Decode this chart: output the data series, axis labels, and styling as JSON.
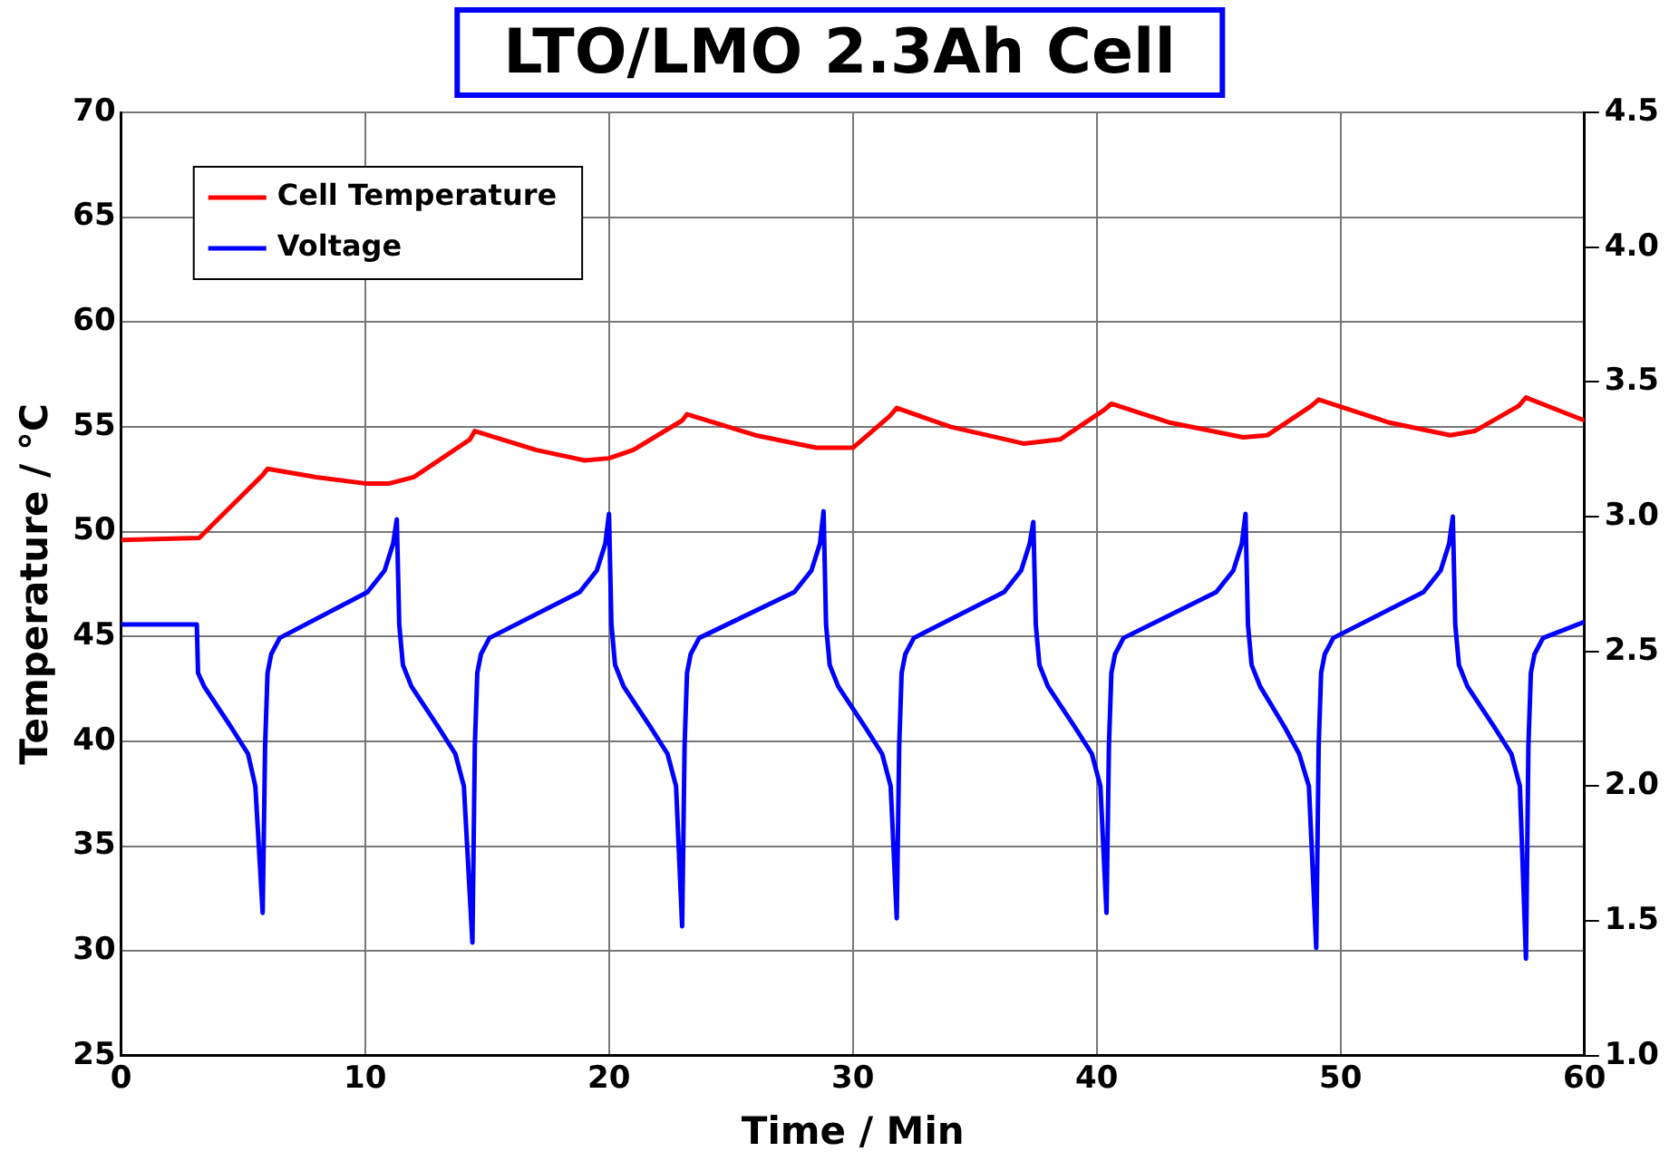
{
  "chart_data": {
    "type": "line",
    "title": "LTO/LMO 2.3Ah Cell",
    "xlabel": "Time / Min",
    "ylabel": "Temperature / °C",
    "xlim": [
      0,
      60
    ],
    "xticks": [
      0,
      10,
      20,
      30,
      40,
      50,
      60
    ],
    "ylim": [
      25,
      70
    ],
    "yticks": [
      25,
      30,
      35,
      40,
      45,
      50,
      55,
      60,
      65,
      70
    ],
    "y2lim": [
      1,
      4.5
    ],
    "y2ticks": [
      {
        "value": 1,
        "label": "1.0"
      },
      1.5,
      {
        "value": 2,
        "label": "2.0"
      },
      2.5,
      {
        "value": 3,
        "label": "3.0"
      },
      3.5,
      {
        "value": 4,
        "label": "4.0"
      },
      4.5
    ],
    "grid": true,
    "legend": "top left",
    "marker": "none",
    "line_style": "solid",
    "series": [
      {
        "name": "Cell Temperature",
        "color": "#ff0000",
        "x": [
          0,
          3.2,
          5.8,
          6.0,
          8,
          10,
          11,
          12,
          14.3,
          14.5,
          17,
          19,
          20,
          21,
          23,
          23.2,
          26,
          28.5,
          30,
          31.5,
          31.8,
          34,
          37,
          38.5,
          40.3,
          40.6,
          43,
          46,
          47,
          48.8,
          49.1,
          52,
          54.5,
          55.5,
          57.3,
          57.6,
          60
        ],
        "values": [
          49.6,
          49.7,
          52.7,
          53.0,
          52.6,
          52.3,
          52.3,
          52.6,
          54.4,
          54.8,
          53.9,
          53.4,
          53.5,
          53.9,
          55.3,
          55.6,
          54.6,
          54.0,
          54.0,
          55.5,
          55.9,
          55.0,
          54.2,
          54.4,
          55.8,
          56.1,
          55.2,
          54.5,
          54.6,
          56.0,
          56.3,
          55.2,
          54.6,
          54.8,
          56.0,
          56.4,
          55.3
        ]
      },
      {
        "name": "Voltage",
        "color": "#0000ff",
        "axis": "y2",
        "x": [
          0,
          3.1,
          3.15,
          3.4,
          4.5,
          5.2,
          5.5,
          5.8,
          5.9,
          6.0,
          6.15,
          6.5,
          10.1,
          10.8,
          11.15,
          11.3,
          11.4,
          11.55,
          11.9,
          13.0,
          13.7,
          14.05,
          14.4,
          14.5,
          14.6,
          14.75,
          15.1,
          18.8,
          19.5,
          19.85,
          20.0,
          20.1,
          20.25,
          20.6,
          21.7,
          22.4,
          22.75,
          23.0,
          23.1,
          23.2,
          23.35,
          23.7,
          27.6,
          28.3,
          28.65,
          28.8,
          28.9,
          29.05,
          29.4,
          30.5,
          31.2,
          31.55,
          31.8,
          31.9,
          32.0,
          32.15,
          32.5,
          36.2,
          36.9,
          37.25,
          37.4,
          37.5,
          37.65,
          38.0,
          39.1,
          39.8,
          40.15,
          40.4,
          40.5,
          40.6,
          40.75,
          41.1,
          44.9,
          45.6,
          45.95,
          46.1,
          46.2,
          46.35,
          46.7,
          47.7,
          48.3,
          48.7,
          49.0,
          49.1,
          49.2,
          49.35,
          49.7,
          53.4,
          54.1,
          54.45,
          54.6,
          54.7,
          54.85,
          55.2,
          56.3,
          57.0,
          57.35,
          57.6,
          57.7,
          57.8,
          57.95,
          58.3,
          60
        ],
        "values": [
          2.6,
          2.6,
          2.42,
          2.37,
          2.22,
          2.12,
          2.0,
          1.53,
          2.15,
          2.42,
          2.49,
          2.55,
          2.72,
          2.8,
          2.9,
          2.99,
          2.6,
          2.45,
          2.37,
          2.22,
          2.12,
          2.0,
          1.42,
          2.15,
          2.42,
          2.49,
          2.55,
          2.72,
          2.8,
          2.9,
          3.01,
          2.6,
          2.45,
          2.37,
          2.22,
          2.12,
          2.0,
          1.48,
          2.15,
          2.42,
          2.49,
          2.55,
          2.72,
          2.8,
          2.9,
          3.02,
          2.6,
          2.45,
          2.37,
          2.22,
          2.12,
          2.0,
          1.51,
          2.15,
          2.42,
          2.49,
          2.55,
          2.72,
          2.8,
          2.9,
          2.98,
          2.6,
          2.45,
          2.37,
          2.22,
          2.12,
          2.0,
          1.53,
          2.15,
          2.42,
          2.49,
          2.55,
          2.72,
          2.8,
          2.9,
          3.01,
          2.6,
          2.45,
          2.37,
          2.22,
          2.12,
          2.0,
          1.4,
          2.15,
          2.42,
          2.49,
          2.55,
          2.72,
          2.8,
          2.9,
          3.0,
          2.6,
          2.45,
          2.37,
          2.22,
          2.12,
          2.0,
          1.36,
          2.15,
          2.42,
          2.49,
          2.55,
          2.61
        ]
      }
    ]
  }
}
